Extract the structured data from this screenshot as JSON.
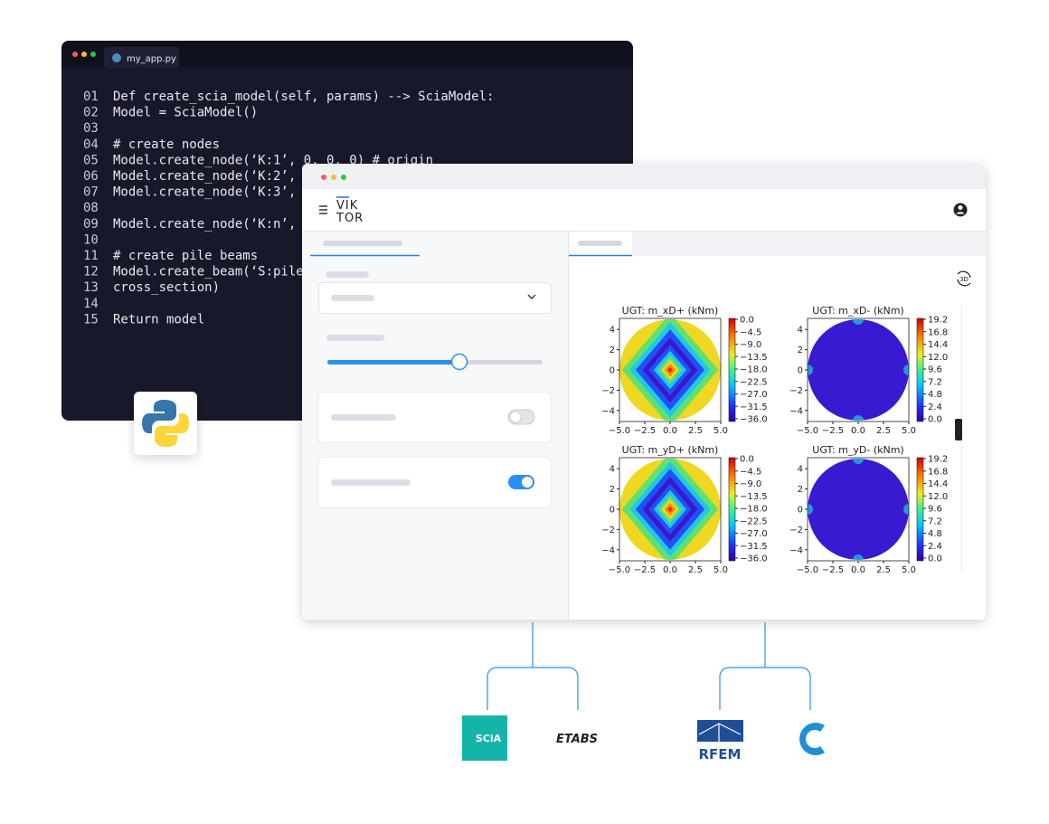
{
  "editor": {
    "tab": "my_app.py",
    "lines": [
      {
        "no": "01",
        "text": "Def create_scia_model(self, params) --> SciaModel:"
      },
      {
        "no": "02",
        "text": "Model = SciaModel()"
      },
      {
        "no": "03",
        "text": ""
      },
      {
        "no": "04",
        "text": "# create nodes"
      },
      {
        "no": "05",
        "text": "Model.create_node(‘K:1’, 0, 0, 0) # origin"
      },
      {
        "no": "06",
        "text": "Model.create_node(‘K:2’,"
      },
      {
        "no": "07",
        "text": "Model.create_node(‘K:3’,"
      },
      {
        "no": "08",
        "text": ""
      },
      {
        "no": "09",
        "text": "Model.create_node(‘K:n’,"
      },
      {
        "no": "10",
        "text": ""
      },
      {
        "no": "11",
        "text": "# create pile beams"
      },
      {
        "no": "12",
        "text": "Model.create_beam(‘S:pile"
      },
      {
        "no": "13",
        "text": "cross_section)"
      },
      {
        "no": "14",
        "text": ""
      },
      {
        "no": "15",
        "text": "Return model"
      }
    ]
  },
  "app": {
    "logo_top": "VIK",
    "logo_bottom": "TOR",
    "view_button": "3D",
    "plots": [
      {
        "title": "UGT: m_xD+ (kNm)",
        "kind": "plus",
        "xticks": [
          "−5.0",
          "−2.5",
          "0.0",
          "2.5",
          "5.0"
        ],
        "yticks": [
          "4",
          "2",
          "0",
          "−2",
          "−4"
        ],
        "cbar_ticks": [
          "0.0",
          "−4.5",
          "−9.0",
          "−13.5",
          "−18.0",
          "−22.5",
          "−27.0",
          "−31.5",
          "−36.0"
        ]
      },
      {
        "title": "UGT: m_xD- (kNm)",
        "kind": "minus",
        "xticks": [
          "−5.0",
          "−2.5",
          "0.0",
          "2.5",
          "5.0"
        ],
        "yticks": [
          "4",
          "2",
          "0",
          "−2",
          "−4"
        ],
        "cbar_ticks": [
          "19.2",
          "16.8",
          "14.4",
          "12.0",
          "9.6",
          "7.2",
          "4.8",
          "2.4",
          "0.0"
        ]
      },
      {
        "title": "UGT: m_yD+ (kNm)",
        "kind": "plus",
        "xticks": [
          "−5.0",
          "−2.5",
          "0.0",
          "2.5",
          "5.0"
        ],
        "yticks": [
          "4",
          "2",
          "0",
          "−2",
          "−4"
        ],
        "cbar_ticks": [
          "0.0",
          "−4.5",
          "−9.0",
          "−13.5",
          "−18.0",
          "−22.5",
          "−27.0",
          "−31.5",
          "−36.0"
        ]
      },
      {
        "title": "UGT: m_yD- (kNm)",
        "kind": "minus",
        "xticks": [
          "−5.0",
          "−2.5",
          "0.0",
          "2.5",
          "5.0"
        ],
        "yticks": [
          "4",
          "2",
          "0",
          "−2",
          "−4"
        ],
        "cbar_ticks": [
          "19.2",
          "16.8",
          "14.4",
          "12.0",
          "9.6",
          "7.2",
          "4.8",
          "2.4",
          "0.0"
        ]
      }
    ]
  },
  "integrations": {
    "scia": "SCiA",
    "etabs": "ETABS",
    "rfem": "RFEM"
  }
}
